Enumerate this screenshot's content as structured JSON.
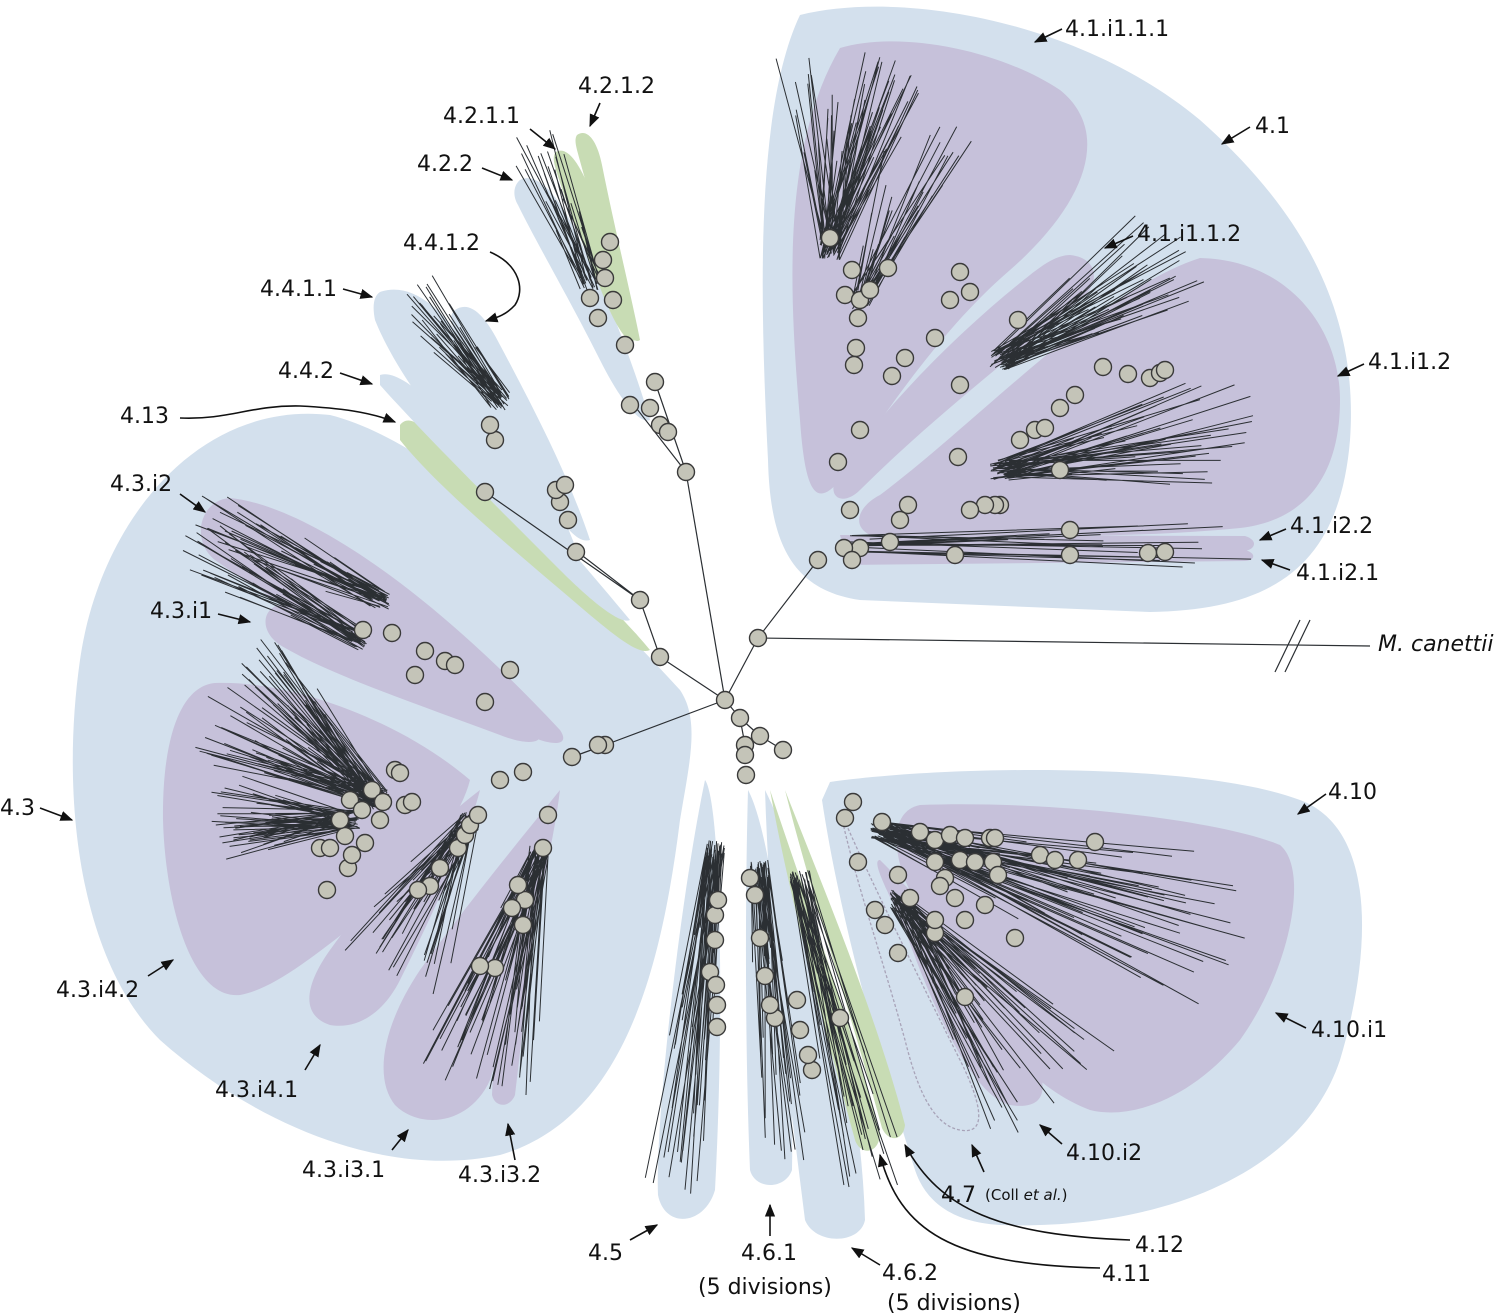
{
  "colors": {
    "sublineage_fill": "#d3e0ed",
    "subgroup_fill": "#c6c1da",
    "singleton_fill": "#c8dcb4",
    "branch": "#2b2f33",
    "node_fill": "#c4c4b8"
  },
  "labels": {
    "l4_1_i1_1_1": "4.1.i1.1.1",
    "l4_1": "4.1",
    "l4_1_i1_1_2": "4.1.i1.1.2",
    "l4_1_i1_2": "4.1.i1.2",
    "l4_1_i2_2": "4.1.i2.2",
    "l4_1_i2_1": "4.1.i2.1",
    "outgroup": "M. canettii",
    "l4_10": "4.10",
    "l4_10_i1": "4.10.i1",
    "l4_10_i2": "4.10.i2",
    "l4_7": "4.7",
    "l4_7_coll": "(Coll",
    "l4_7_etal": "et al.",
    "l4_7_close": ")",
    "l4_12": "4.12",
    "l4_11": "4.11",
    "l4_6_2": "4.6.2",
    "l4_6_2_div": "(5 divisions)",
    "l4_6_1": "4.6.1",
    "l4_6_1_div": "(5 divisions)",
    "l4_5": "4.5",
    "l4_3_i3_2": "4.3.i3.2",
    "l4_3_i3_1": "4.3.i3.1",
    "l4_3_i4_1": "4.3.i4.1",
    "l4_3_i4_2": "4.3.i4.2",
    "l4_3": "4.3",
    "l4_3_i1": "4.3.i1",
    "l4_3_i2": "4.3.i2",
    "l4_13": "4.13",
    "l4_4_2": "4.4.2",
    "l4_4_1_1": "4.4.1.1",
    "l4_4_1_2": "4.4.1.2",
    "l4_2_2": "4.2.2",
    "l4_2_1_1": "4.2.1.1",
    "l4_2_1_2": "4.2.1.2"
  }
}
